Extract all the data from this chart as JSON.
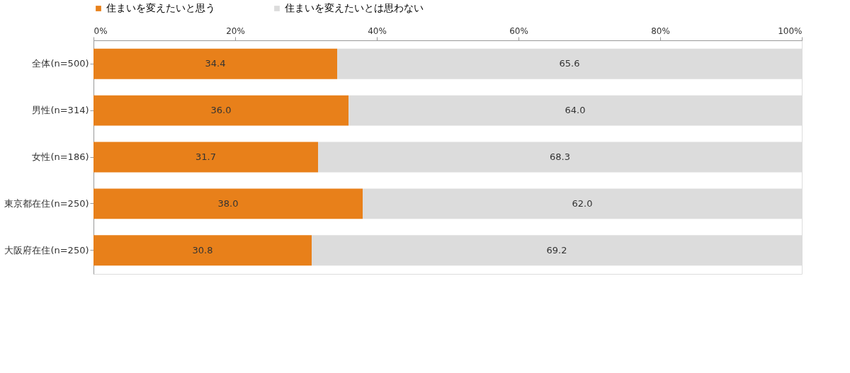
{
  "chart_data": {
    "type": "bar",
    "orientation": "horizontal",
    "stacked": true,
    "legend": "top",
    "grid": false,
    "categories": [
      "全体(n=500)",
      "男性(n=314)",
      "女性(n=186)",
      "東京都在住(n=250)",
      "大阪府在住(n=250)"
    ],
    "series": [
      {
        "name": "住まいを変えたいと思う",
        "color": "#e8801a",
        "values": [
          34.4,
          36.0,
          31.7,
          38.0,
          30.8
        ],
        "value_labels": [
          "34.4",
          "36.0",
          "31.7",
          "38.0",
          "30.8"
        ]
      },
      {
        "name": "住まいを変えたいとは思わない",
        "color": "#dcdcdc",
        "values": [
          65.6,
          64.0,
          68.3,
          62.0,
          69.2
        ],
        "value_labels": [
          "65.6",
          "64.0",
          "68.3",
          "62.0",
          "69.2"
        ]
      }
    ],
    "xlim": [
      0,
      100
    ],
    "xticks": [
      {
        "value": 0,
        "label": "0%"
      },
      {
        "value": 20,
        "label": "20%"
      },
      {
        "value": 40,
        "label": "40%"
      },
      {
        "value": 60,
        "label": "60%"
      },
      {
        "value": 80,
        "label": "80%"
      },
      {
        "value": 100,
        "label": "100%"
      }
    ]
  }
}
